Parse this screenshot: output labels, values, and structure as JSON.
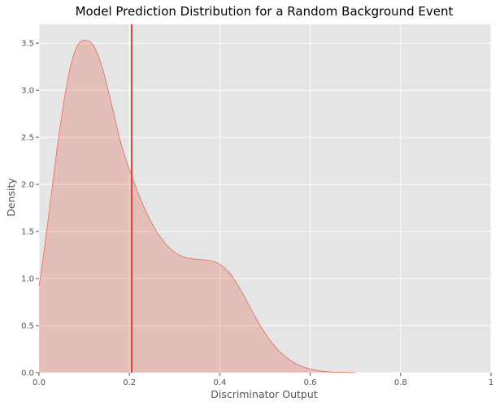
{
  "chart_data": {
    "type": "area",
    "title": "Model Prediction Distribution for a Random Background Event",
    "xlabel": "Discriminator Output",
    "ylabel": "Density",
    "xlim": [
      0,
      1
    ],
    "ylim": [
      0,
      3.7
    ],
    "grid": true,
    "xticks": [
      0.0,
      0.2,
      0.4,
      0.6,
      0.8,
      1.0
    ],
    "xtick_labels": [
      "0.0",
      "0.2",
      "0.4",
      "0.6",
      "0.8",
      "1"
    ],
    "yticks": [
      0.0,
      0.5,
      1.0,
      1.5,
      2.0,
      2.5,
      3.0,
      3.5
    ],
    "ytick_labels": [
      "0.0",
      "0.5",
      "1.0",
      "1.5",
      "2.0",
      "2.5",
      "3.0",
      "3.5"
    ],
    "series": [
      {
        "x": [
          0.0,
          0.01,
          0.02,
          0.03,
          0.04,
          0.05,
          0.06,
          0.07,
          0.08,
          0.09,
          0.1,
          0.11,
          0.12,
          0.13,
          0.14,
          0.15,
          0.16,
          0.17,
          0.18,
          0.19,
          0.2,
          0.21,
          0.22,
          0.24,
          0.26,
          0.28,
          0.3,
          0.32,
          0.34,
          0.36,
          0.38,
          0.4,
          0.42,
          0.44,
          0.46,
          0.48,
          0.5,
          0.52,
          0.54,
          0.56,
          0.58,
          0.6,
          0.62,
          0.64,
          0.66,
          0.68,
          0.7
        ],
        "y": [
          0.92,
          1.25,
          1.62,
          2.0,
          2.38,
          2.72,
          3.02,
          3.26,
          3.42,
          3.51,
          3.53,
          3.52,
          3.48,
          3.38,
          3.24,
          3.06,
          2.86,
          2.66,
          2.46,
          2.3,
          2.16,
          2.03,
          1.9,
          1.68,
          1.5,
          1.37,
          1.28,
          1.23,
          1.21,
          1.2,
          1.19,
          1.15,
          1.07,
          0.93,
          0.76,
          0.58,
          0.42,
          0.29,
          0.19,
          0.12,
          0.07,
          0.04,
          0.02,
          0.01,
          0.005,
          0.002,
          0.0
        ],
        "color": "#e24a33",
        "fill": "#e24a33"
      }
    ],
    "vline": {
      "x": 0.205,
      "color": "#e24a33"
    },
    "background": "#e5e5e5",
    "grid_color": "#ffffff"
  }
}
